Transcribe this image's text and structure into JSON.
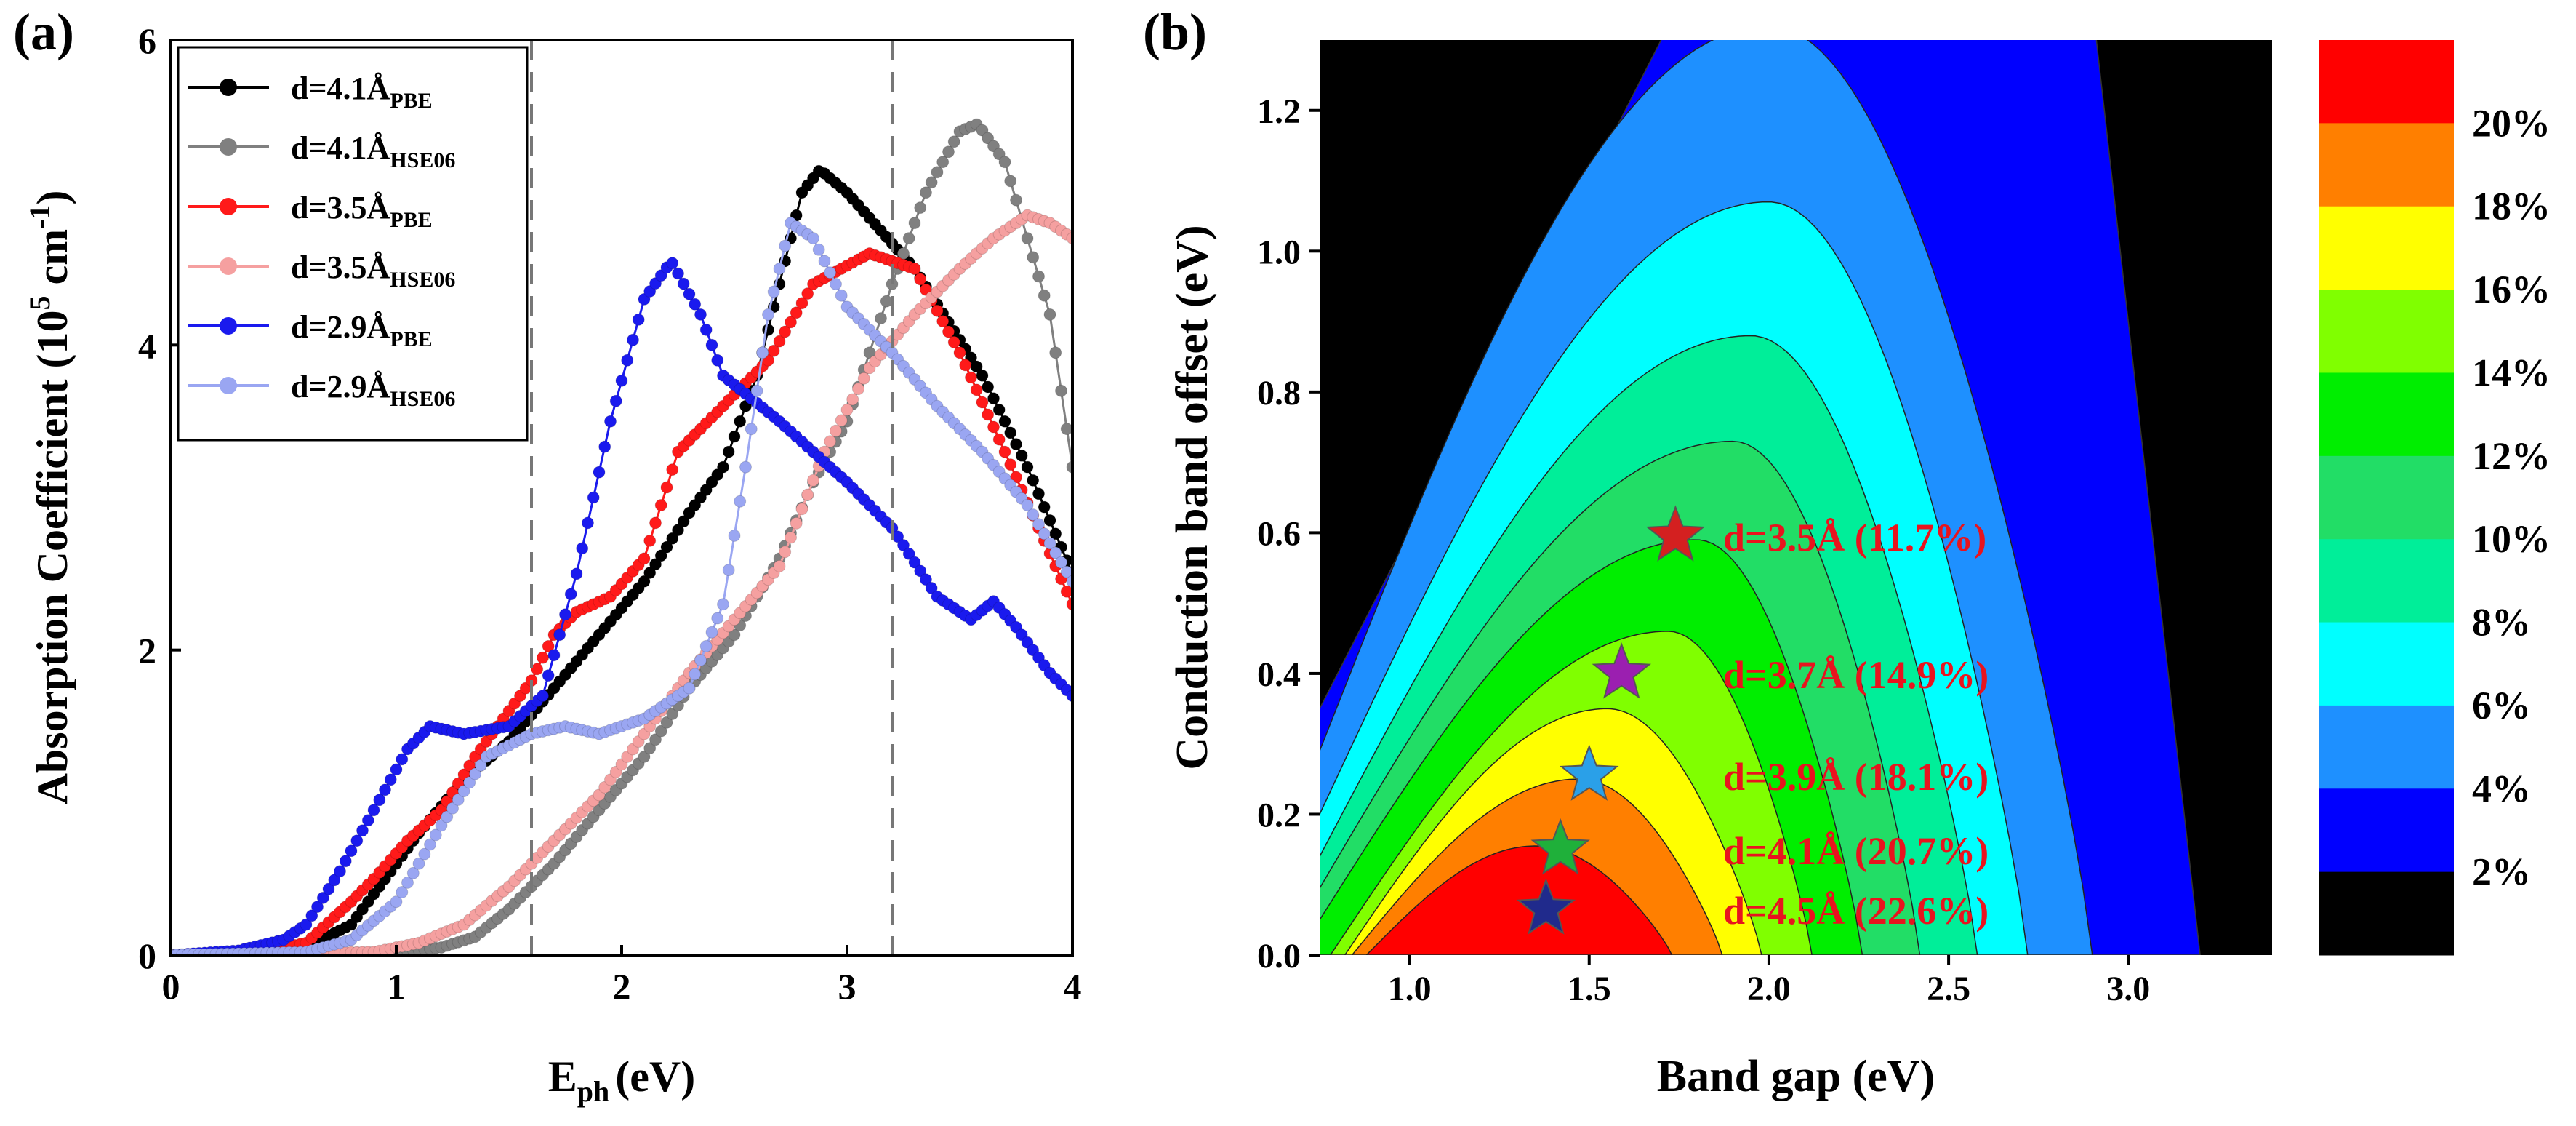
{
  "chart_data": [
    {
      "type": "line",
      "panel_label": "(a)",
      "xlabel_main": "E",
      "xlabel_sub": "ph",
      "xlabel_unit": "(eV)",
      "ylabel_main": "Absorption Coefficient (10",
      "ylabel_sup": "5",
      "ylabel_unit": " cm",
      "ylabel_sup2": "-1",
      "ylabel_end": ")",
      "xlim": [
        0,
        4
      ],
      "ylim": [
        0,
        6
      ],
      "xticks": [
        "0",
        "1",
        "2",
        "3",
        "4"
      ],
      "yticks": [
        "0",
        "2",
        "4",
        "6"
      ],
      "vlines": [
        1.6,
        3.2
      ],
      "legend_position": "top-left",
      "series": [
        {
          "name": "d=4.1Å",
          "sub": "PBE",
          "color": "#000000",
          "points": [
            [
              0,
              0
            ],
            [
              0.3,
              0.01
            ],
            [
              0.6,
              0.05
            ],
            [
              0.8,
              0.2
            ],
            [
              0.95,
              0.5
            ],
            [
              1.1,
              0.8
            ],
            [
              1.3,
              1.15
            ],
            [
              1.5,
              1.4
            ],
            [
              1.7,
              1.75
            ],
            [
              1.9,
              2.1
            ],
            [
              2.1,
              2.45
            ],
            [
              2.3,
              2.9
            ],
            [
              2.45,
              3.2
            ],
            [
              2.6,
              3.8
            ],
            [
              2.7,
              4.4
            ],
            [
              2.8,
              5.0
            ],
            [
              2.88,
              5.15
            ],
            [
              3.0,
              5.0
            ],
            [
              3.3,
              4.5
            ],
            [
              3.6,
              3.8
            ],
            [
              3.8,
              3.2
            ],
            [
              4.0,
              2.5
            ]
          ]
        },
        {
          "name": "d=4.1Å",
          "sub": "HSE06",
          "color": "#808080",
          "points": [
            [
              0,
              0
            ],
            [
              1.0,
              0.02
            ],
            [
              1.2,
              0.05
            ],
            [
              1.35,
              0.12
            ],
            [
              1.5,
              0.3
            ],
            [
              1.7,
              0.6
            ],
            [
              1.9,
              0.95
            ],
            [
              2.1,
              1.3
            ],
            [
              2.3,
              1.75
            ],
            [
              2.5,
              2.1
            ],
            [
              2.7,
              2.6
            ],
            [
              2.85,
              3.1
            ],
            [
              3.0,
              3.5
            ],
            [
              3.2,
              4.4
            ],
            [
              3.35,
              5.0
            ],
            [
              3.5,
              5.4
            ],
            [
              3.58,
              5.45
            ],
            [
              3.7,
              5.2
            ],
            [
              3.9,
              4.2
            ],
            [
              4.0,
              3.2
            ]
          ]
        },
        {
          "name": "d=3.5Å",
          "sub": "PBE",
          "color": "#ff1a1a",
          "points": [
            [
              0,
              0
            ],
            [
              0.4,
              0.02
            ],
            [
              0.6,
              0.08
            ],
            [
              0.8,
              0.35
            ],
            [
              0.9,
              0.5
            ],
            [
              1.05,
              0.75
            ],
            [
              1.2,
              0.95
            ],
            [
              1.35,
              1.3
            ],
            [
              1.5,
              1.6
            ],
            [
              1.6,
              1.8
            ],
            [
              1.7,
              2.1
            ],
            [
              1.8,
              2.25
            ],
            [
              1.95,
              2.35
            ],
            [
              2.1,
              2.6
            ],
            [
              2.25,
              3.3
            ],
            [
              2.45,
              3.6
            ],
            [
              2.65,
              3.9
            ],
            [
              2.85,
              4.4
            ],
            [
              3.1,
              4.6
            ],
            [
              3.3,
              4.5
            ],
            [
              3.5,
              3.95
            ],
            [
              3.7,
              3.3
            ],
            [
              3.85,
              2.8
            ],
            [
              4.0,
              2.3
            ]
          ]
        },
        {
          "name": "d=3.5Å",
          "sub": "HSE06",
          "color": "#f5a0a0",
          "points": [
            [
              0,
              0
            ],
            [
              0.9,
              0.02
            ],
            [
              1.1,
              0.08
            ],
            [
              1.3,
              0.2
            ],
            [
              1.5,
              0.45
            ],
            [
              1.7,
              0.75
            ],
            [
              1.9,
              1.05
            ],
            [
              2.1,
              1.45
            ],
            [
              2.3,
              1.85
            ],
            [
              2.5,
              2.2
            ],
            [
              2.7,
              2.55
            ],
            [
              2.9,
              3.3
            ],
            [
              3.1,
              3.85
            ],
            [
              3.3,
              4.2
            ],
            [
              3.5,
              4.5
            ],
            [
              3.65,
              4.7
            ],
            [
              3.8,
              4.85
            ],
            [
              3.9,
              4.8
            ],
            [
              4.0,
              4.7
            ]
          ]
        },
        {
          "name": "d=2.9Å",
          "sub": "PBE",
          "color": "#1a1aee",
          "points": [
            [
              0,
              0
            ],
            [
              0.3,
              0.03
            ],
            [
              0.5,
              0.1
            ],
            [
              0.6,
              0.2
            ],
            [
              0.75,
              0.55
            ],
            [
              0.9,
              0.95
            ],
            [
              1.05,
              1.35
            ],
            [
              1.15,
              1.5
            ],
            [
              1.3,
              1.45
            ],
            [
              1.5,
              1.5
            ],
            [
              1.65,
              1.7
            ],
            [
              1.8,
              2.5
            ],
            [
              1.95,
              3.5
            ],
            [
              2.1,
              4.3
            ],
            [
              2.22,
              4.55
            ],
            [
              2.35,
              4.2
            ],
            [
              2.45,
              3.8
            ],
            [
              2.7,
              3.5
            ],
            [
              3.0,
              3.1
            ],
            [
              3.2,
              2.8
            ],
            [
              3.4,
              2.35
            ],
            [
              3.55,
              2.2
            ],
            [
              3.65,
              2.32
            ],
            [
              3.75,
              2.15
            ],
            [
              3.9,
              1.85
            ],
            [
              4.0,
              1.7
            ]
          ]
        },
        {
          "name": "d=2.9Å",
          "sub": "HSE06",
          "color": "#9aa6f2",
          "points": [
            [
              0,
              0
            ],
            [
              0.6,
              0.02
            ],
            [
              0.8,
              0.1
            ],
            [
              1.0,
              0.35
            ],
            [
              1.2,
              0.85
            ],
            [
              1.4,
              1.3
            ],
            [
              1.6,
              1.45
            ],
            [
              1.75,
              1.5
            ],
            [
              1.9,
              1.45
            ],
            [
              2.1,
              1.55
            ],
            [
              2.3,
              1.75
            ],
            [
              2.45,
              2.3
            ],
            [
              2.55,
              3.2
            ],
            [
              2.65,
              4.2
            ],
            [
              2.75,
              4.8
            ],
            [
              2.85,
              4.7
            ],
            [
              3.0,
              4.25
            ],
            [
              3.2,
              3.95
            ],
            [
              3.4,
              3.6
            ],
            [
              3.6,
              3.3
            ],
            [
              3.8,
              2.95
            ],
            [
              4.0,
              2.45
            ]
          ]
        }
      ]
    },
    {
      "type": "heatmap",
      "panel_label": "(b)",
      "xlabel": "Band gap (eV)",
      "ylabel": "Conduction band offset (eV)",
      "xlim": [
        0.75,
        3.4
      ],
      "ylim": [
        0,
        1.3
      ],
      "xticks": [
        "1.0",
        "1.5",
        "2.0",
        "2.5",
        "3.0"
      ],
      "yticks": [
        "0.0",
        "0.2",
        "0.4",
        "0.6",
        "0.8",
        "1.0",
        "1.2"
      ],
      "colorbar_labels": [
        "20%",
        "18%",
        "16%",
        "14%",
        "12%",
        "10%",
        "8%",
        "6%",
        "4%",
        "2%"
      ],
      "colorbar_colors": [
        "#ff0000",
        "#ff7f00",
        "#ffff00",
        "#80ff00",
        "#00ee00",
        "#22dd66",
        "#00ee99",
        "#00ffff",
        "#1e90ff",
        "#0000ff",
        "#000000"
      ],
      "annotations": [
        {
          "label": "d=3.5Å (11.7%)",
          "x": 1.74,
          "y": 0.595,
          "star_color": "#d42020"
        },
        {
          "label": "d=3.7Å (14.9%)",
          "x": 1.59,
          "y": 0.4,
          "star_color": "#9b1fb0"
        },
        {
          "label": "d=3.9Å (18.1%)",
          "x": 1.5,
          "y": 0.255,
          "star_color": "#2aa0e8"
        },
        {
          "label": "d=4.1Å (20.7%)",
          "x": 1.42,
          "y": 0.15,
          "star_color": "#1fb03a"
        },
        {
          "label": "d=4.5Å (22.6%)",
          "x": 1.38,
          "y": 0.065,
          "star_color": "#202a8c"
        }
      ]
    }
  ]
}
